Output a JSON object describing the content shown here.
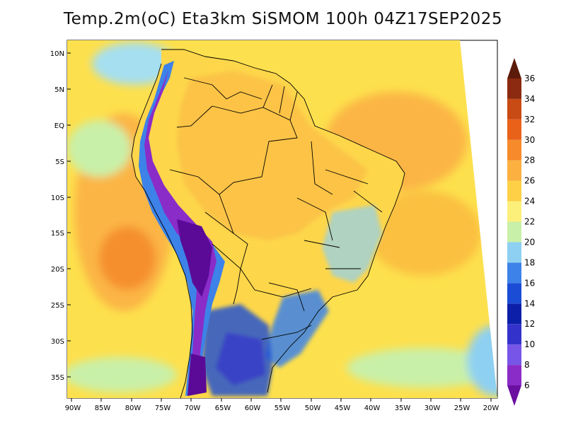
{
  "title": "Temp.2m(oC) Eta3km SiSMOM 100h 04Z17SEP2025",
  "map": {
    "lat_labels": [
      "10N",
      "5N",
      "EQ",
      "5S",
      "10S",
      "15S",
      "20S",
      "25S",
      "30S",
      "35S"
    ],
    "lon_labels": [
      "90W",
      "85W",
      "80W",
      "75W",
      "70W",
      "65W",
      "60W",
      "55W",
      "50W",
      "45W",
      "40W",
      "35W",
      "30W",
      "25W",
      "20W"
    ]
  },
  "colorbar": {
    "labels": [
      "6",
      "8",
      "10",
      "12",
      "14",
      "16",
      "18",
      "20",
      "22",
      "24",
      "26",
      "28",
      "30",
      "32",
      "34",
      "36"
    ],
    "colors": [
      "#6a0fa0",
      "#8a2cc8",
      "#7755e8",
      "#3333cc",
      "#0c1fa8",
      "#1a4cd6",
      "#3d82e8",
      "#8ed0f2",
      "#c9f0a8",
      "#fdf07a",
      "#fdd046",
      "#fbb040",
      "#f78a2a",
      "#e9621a",
      "#c84a14",
      "#8b2a10",
      "#5c1a0a"
    ]
  },
  "palette": {
    "ocean_warm": "#fbb545",
    "ocean_mild": "#fde04d",
    "ocean_cool": "#c9f0a8",
    "land_base": "#fdd64a",
    "andes_high": "#5a0a96",
    "south_cold": "#1a4cd6",
    "coast_line": "#000000"
  }
}
